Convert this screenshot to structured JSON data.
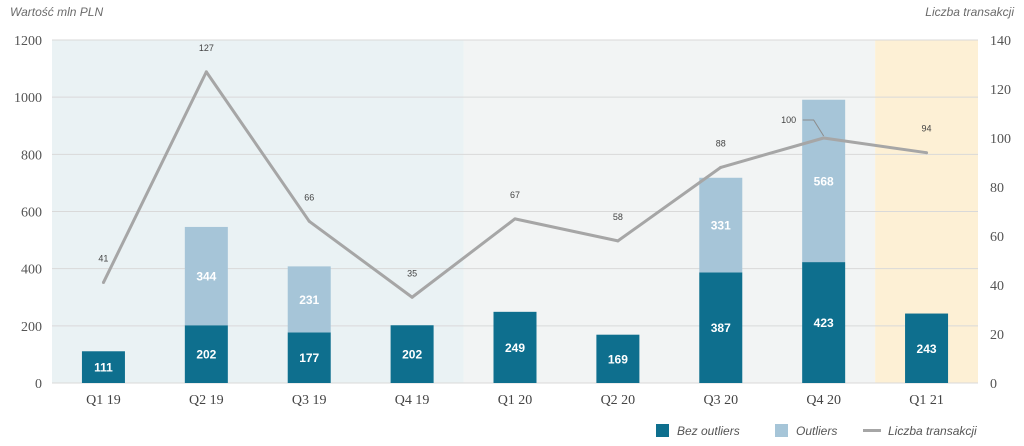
{
  "chart_data": {
    "type": "bar",
    "categories": [
      "Q1 19",
      "Q2 19",
      "Q3 19",
      "Q4 19",
      "Q1 20",
      "Q2 20",
      "Q3 20",
      "Q4 20",
      "Q1 21"
    ],
    "series": [
      {
        "name": "Bez outliers",
        "type": "bar",
        "stack": "value",
        "axis": "left",
        "values": [
          111,
          202,
          177,
          202,
          249,
          169,
          387,
          423,
          243
        ]
      },
      {
        "name": "Outliers",
        "type": "bar",
        "stack": "value",
        "axis": "left",
        "values": [
          null,
          344,
          231,
          null,
          null,
          null,
          331,
          568,
          null
        ]
      },
      {
        "name": "Liczba transakcji",
        "type": "line",
        "axis": "right",
        "values": [
          41,
          127,
          66,
          35,
          67,
          58,
          88,
          100,
          94
        ]
      }
    ],
    "ylabel": "Wartość mln PLN",
    "y2label": "Liczba transakcji",
    "ylim": [
      0,
      1200
    ],
    "y2lim": [
      0,
      140
    ],
    "yticks": [
      0,
      200,
      400,
      600,
      800,
      1000,
      1200
    ],
    "y2ticks": [
      0,
      20,
      40,
      60,
      80,
      100,
      120,
      140
    ],
    "grid": true,
    "legend_position": "bottom-right",
    "background_bands": [
      {
        "from": "Q1 19",
        "to": "Q4 19",
        "color": "#eaf2f4"
      },
      {
        "from": "Q1 20",
        "to": "Q4 20",
        "color": "#f2f4f4"
      },
      {
        "from": "Q1 21",
        "to": "Q1 21",
        "color": "#fdf0d5"
      }
    ],
    "colors": {
      "Bez outliers": "#0e6f8e",
      "Outliers": "#a6c5d8",
      "Liczba transakcji": "#a6a6a6"
    }
  }
}
